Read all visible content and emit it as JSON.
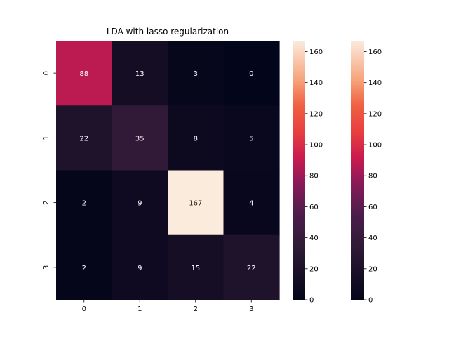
{
  "chart_data": {
    "type": "heatmap",
    "title": "LDA with lasso regularization",
    "xlabel": "",
    "ylabel": "",
    "x_categories": [
      "0",
      "1",
      "2",
      "3"
    ],
    "y_categories": [
      "0",
      "1",
      "2",
      "3"
    ],
    "values": [
      [
        88,
        13,
        3,
        0
      ],
      [
        22,
        35,
        8,
        5
      ],
      [
        2,
        9,
        167,
        4
      ],
      [
        2,
        9,
        15,
        22
      ]
    ],
    "colormap": "rocket",
    "vmin": 0,
    "vmax": 167,
    "colorbars": [
      {
        "ticks": [
          0,
          20,
          40,
          60,
          80,
          100,
          120,
          140,
          160
        ]
      },
      {
        "ticks": [
          0,
          20,
          40,
          60,
          80,
          100,
          120,
          140,
          160
        ]
      }
    ],
    "grid": false,
    "annotations": true
  }
}
